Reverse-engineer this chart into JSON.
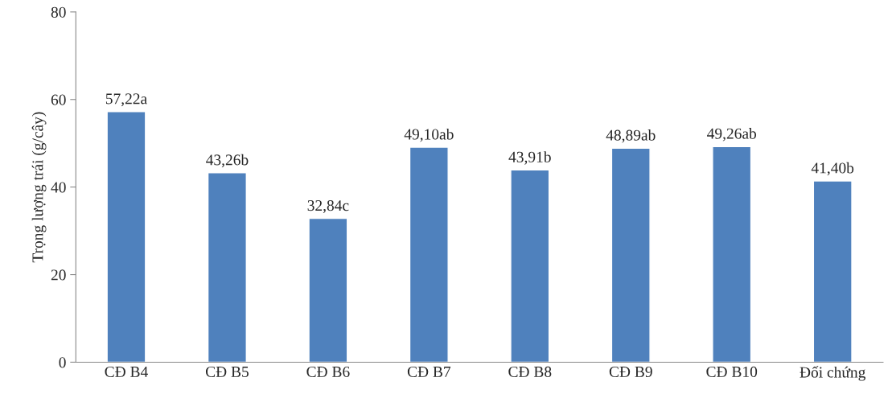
{
  "chart_data": {
    "type": "bar",
    "ylabel": "Trọng lượng trái (g/cây)",
    "categories": [
      "CĐ B4",
      "CĐ B5",
      "CĐ B6",
      "CĐ B7",
      "CĐ B8",
      "CĐ B9",
      "CĐ B10",
      "Đối chứng"
    ],
    "values": [
      57.22,
      43.26,
      32.84,
      49.1,
      43.91,
      48.89,
      49.26,
      41.4
    ],
    "value_labels": [
      "57,22a",
      "43,26b",
      "32,84c",
      "49,10ab",
      "43,91b",
      "48,89ab",
      "49,26ab",
      "41,40b"
    ],
    "color": "#4f81bd",
    "ylim": [
      0,
      80
    ],
    "yticks": [
      0,
      20,
      40,
      60,
      80
    ],
    "grid": false
  }
}
